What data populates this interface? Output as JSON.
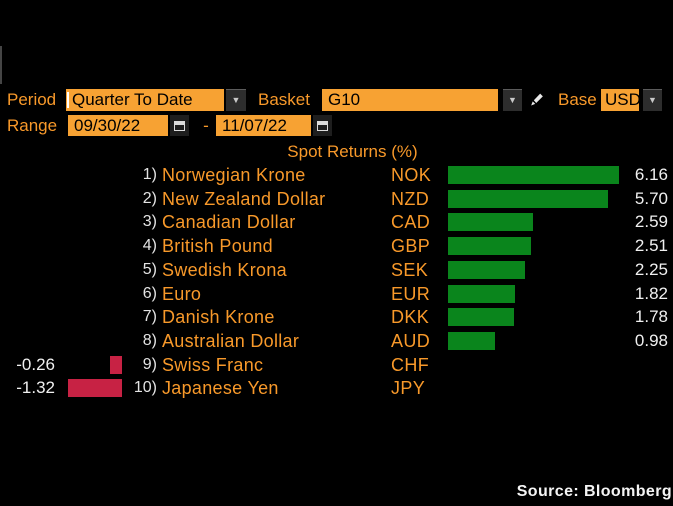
{
  "colors": {
    "background": "#000000",
    "amber_text": "#f8992a",
    "amber_field": "#f7a233",
    "positive_green": "#0a851c",
    "negative_red": "#c72244",
    "value_text": "#f0f0f0"
  },
  "icons": {
    "dropdown_arrow": "▼",
    "pencil": "pencil-edit",
    "calendar": "calendar-grid"
  },
  "controls": {
    "period": {
      "label": "Period",
      "value": "Quarter To Date"
    },
    "basket": {
      "label": "Basket",
      "value": "G10"
    },
    "base": {
      "label": "Base",
      "value": "USD"
    },
    "range": {
      "label": "Range",
      "start": "09/30/22",
      "separator": "-",
      "end": "11/07/22"
    }
  },
  "chart_data": {
    "type": "bar",
    "orientation": "horizontal",
    "title": "Spot Returns (%)",
    "value_unit": "%",
    "xlim": [
      -1.32,
      6.16
    ],
    "legend": "none",
    "grid": false,
    "categories": [
      "Norwegian Krone",
      "New Zealand Dollar",
      "Canadian Dollar",
      "British Pound",
      "Swedish Krona",
      "Euro",
      "Danish Krone",
      "Australian Dollar",
      "Swiss Franc",
      "Japanese Yen"
    ],
    "rows": [
      {
        "rank": "1)",
        "name": "Norwegian Krone",
        "ticker": "NOK",
        "value": 6.16,
        "label": "6.16"
      },
      {
        "rank": "2)",
        "name": "New Zealand Dollar",
        "ticker": "NZD",
        "value": 5.7,
        "label": "5.70"
      },
      {
        "rank": "3)",
        "name": "Canadian Dollar",
        "ticker": "CAD",
        "value": 2.59,
        "label": "2.59"
      },
      {
        "rank": "4)",
        "name": "British Pound",
        "ticker": "GBP",
        "value": 2.51,
        "label": "2.51"
      },
      {
        "rank": "5)",
        "name": "Swedish Krona",
        "ticker": "SEK",
        "value": 2.25,
        "label": "2.25"
      },
      {
        "rank": "6)",
        "name": "Euro",
        "ticker": "EUR",
        "value": 1.82,
        "label": "1.82"
      },
      {
        "rank": "7)",
        "name": "Danish Krone",
        "ticker": "DKK",
        "value": 1.78,
        "label": "1.78"
      },
      {
        "rank": "8)",
        "name": "Australian Dollar",
        "ticker": "AUD",
        "value": 0.98,
        "label": "0.98"
      },
      {
        "rank": "9)",
        "name": "Swiss Franc",
        "ticker": "CHF",
        "value": -0.26,
        "label": "-0.26"
      },
      {
        "rank": "10)",
        "name": "Japanese Yen",
        "ticker": "JPY",
        "value": -1.32,
        "label": "-1.32"
      }
    ]
  },
  "footer": {
    "source": "Source: Bloomberg"
  }
}
